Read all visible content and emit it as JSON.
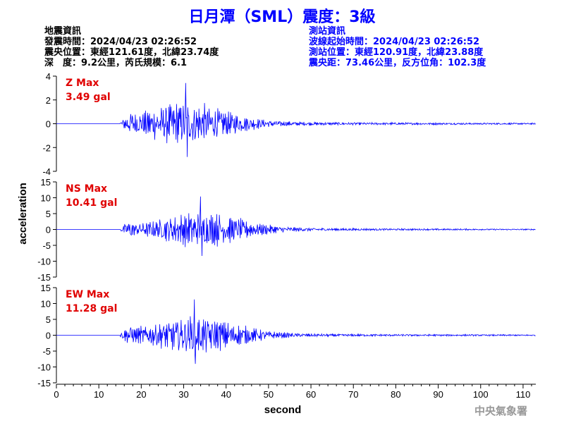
{
  "header": {
    "title": "日月潭（SML）震度：3級"
  },
  "quake_info": {
    "heading": "地震資訊",
    "time": "發震時間：2024/04/23 02:26:52",
    "location": "震央位置：東經121.61度，北緯23.74度",
    "depth_mag": "深　度：9.2公里，芮氏規模：6.1"
  },
  "station_info": {
    "heading": "測站資訊",
    "start_time": "波線起始時間：2024/04/23 02:26:52",
    "location": "測站位置：東經120.91度，北緯23.88度",
    "distance": "震央距：73.46公里，反方位角：102.3度"
  },
  "agency": "中央氣象署",
  "colors": {
    "title": "#0000ff",
    "trace": "#0000ff",
    "max_label": "#e00000",
    "axis": "#000000"
  },
  "chart_data": {
    "type": "line",
    "xlabel": "second",
    "ylabel": "acceleration",
    "xlim": [
      0,
      113
    ],
    "xticks": [
      "0",
      "10",
      "20",
      "30",
      "40",
      "50",
      "60",
      "70",
      "80",
      "90",
      "100",
      "110"
    ],
    "grid": false,
    "panels": [
      {
        "component": "Z",
        "max_label": "Z Max",
        "max_value": "3.49 gal",
        "ylim": [
          -4,
          4
        ],
        "yticks": [
          "4",
          "2",
          "0",
          "-2",
          "-4"
        ],
        "onset": 15,
        "peak_time": 30.5,
        "peak": 3.49
      },
      {
        "component": "NS",
        "max_label": "NS Max",
        "max_value": "10.41 gal",
        "ylim": [
          -15,
          15
        ],
        "yticks": [
          "15",
          "10",
          "5",
          "0",
          "-5",
          "-10",
          "-15"
        ],
        "onset": 15,
        "peak_time": 34,
        "peak": 10.41
      },
      {
        "component": "EW",
        "max_label": "EW Max",
        "max_value": "11.28 gal",
        "ylim": [
          -15,
          15
        ],
        "yticks": [
          "15",
          "10",
          "5",
          "0",
          "-5",
          "-10",
          "-15"
        ],
        "onset": 15,
        "peak_time": 32.5,
        "peak": 11.28
      }
    ]
  }
}
